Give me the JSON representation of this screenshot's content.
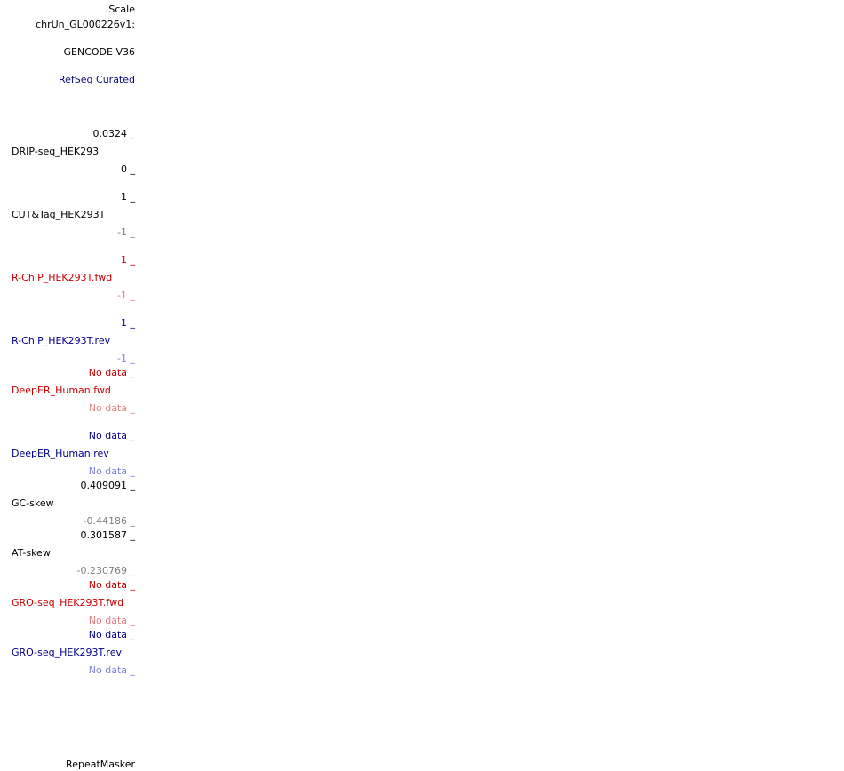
{
  "header": {
    "scale": "Scale",
    "chrom": "chrUn_GL000226v1:"
  },
  "tracks": {
    "gencode": "GENCODE V36",
    "refseq": "RefSeq Curated",
    "drip": {
      "max": "0.0324 _",
      "name": "DRIP-seq_HEK293",
      "min": "0 _"
    },
    "cuttag": {
      "max": "1 _",
      "name": "CUT&Tag_HEK293T",
      "min": "-1 _"
    },
    "rchip_fwd": {
      "max": "1 _",
      "name": "R-ChIP_HEK293T.fwd",
      "min": "-1 _"
    },
    "rchip_rev": {
      "max": "1 _",
      "name": "R-ChIP_HEK293T.rev",
      "min": "-1 _"
    },
    "deeper_fwd": {
      "max": "No data _",
      "name": "DeepER_Human.fwd",
      "min": "No data _"
    },
    "deeper_rev": {
      "max": "No data _",
      "name": "DeepER_Human.rev",
      "min": "No data _"
    },
    "gc_skew": {
      "max": "0.409091 _",
      "name": "GC-skew",
      "min": "-0.44186 _"
    },
    "at_skew": {
      "max": "0.301587 _",
      "name": "AT-skew",
      "min": "-0.230769 _"
    },
    "gro_fwd": {
      "max": "No data _",
      "name": "GRO-seq_HEK293T.fwd",
      "min": "No data _"
    },
    "gro_rev": {
      "max": "No data _",
      "name": "GRO-seq_HEK293T.rev",
      "min": "No data _"
    },
    "repeatmasker": "RepeatMasker"
  },
  "colors": {
    "black": "#000000",
    "navy": "#0c0c78",
    "gray": "#7f7f7f",
    "red": "#c80000",
    "light_red": "#e37f7f",
    "blue": "#0000c8",
    "light_blue": "#7f7fe3"
  }
}
